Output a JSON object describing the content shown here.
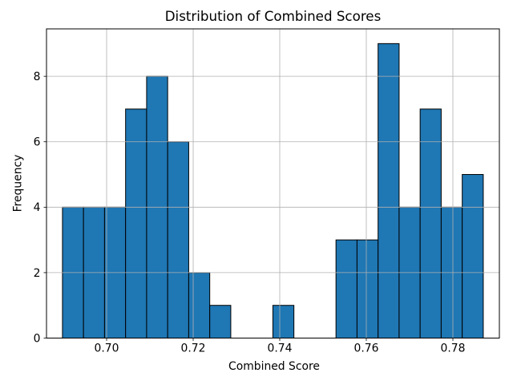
{
  "chart_data": {
    "type": "bar",
    "subtype": "histogram",
    "title": "Distribution of Combined Scores",
    "xlabel": "Combined Score",
    "ylabel": "Frequency",
    "bin_start": 0.6898,
    "bin_width": 0.004861,
    "frequencies": [
      4,
      4,
      4,
      7,
      8,
      6,
      2,
      1,
      0,
      0,
      1,
      0,
      0,
      3,
      3,
      9,
      4,
      7,
      4,
      5
    ],
    "xticks": [
      0.7,
      0.72,
      0.74,
      0.76,
      0.78
    ],
    "xtick_labels": [
      "0.70",
      "0.72",
      "0.74",
      "0.76",
      "0.78"
    ],
    "yticks": [
      0,
      2,
      4,
      6,
      8
    ],
    "ytick_labels": [
      "0",
      "2",
      "4",
      "6",
      "8"
    ],
    "xlim": [
      0.68611,
      0.79074
    ],
    "ylim": [
      0,
      9.45
    ],
    "grid": true,
    "legend": "none",
    "bar_color": "#1f77b4",
    "bar_edge_color": "#000000",
    "grid_color": "#b0b0b0",
    "spine_color": "#000000",
    "tick_color": "#000000",
    "text_color": "#000000",
    "background_color": "#ffffff"
  }
}
